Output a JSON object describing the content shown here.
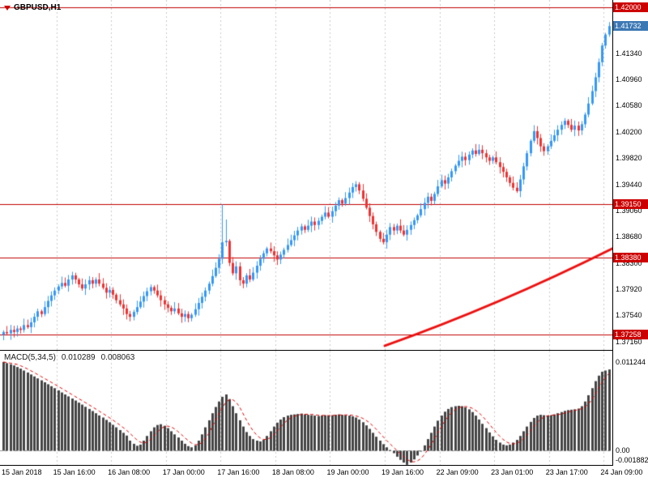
{
  "chart_header": {
    "symbol_label": "GBPUSD,H1"
  },
  "indicator": {
    "name": "MACD(5,34,5)",
    "value_main": "0.010289",
    "value_signal": "0.008063"
  },
  "colors": {
    "bull": "#3598f5",
    "bear": "#ee3333",
    "hist": "#444444",
    "signal": "#e00000",
    "level": "#c00000",
    "trend": "#ee1111",
    "grid": "#c9c9c9",
    "zero_line": "#999999",
    "tag_red": "#cc0000",
    "tag_blue": "#3c78b4"
  },
  "chart_data": [
    {
      "type": "candlestick",
      "title": "GBPUSD,H1",
      "symbol": "GBPUSD",
      "timeframe": "H1",
      "slots": 179,
      "x_labels": [
        {
          "text": "15 Jan 2018",
          "bar": 0
        },
        {
          "text": "15 Jan 16:00",
          "bar": 16
        },
        {
          "text": "16 Jan 08:00",
          "bar": 32
        },
        {
          "text": "17 Jan 00:00",
          "bar": 48
        },
        {
          "text": "17 Jan 16:00",
          "bar": 64
        },
        {
          "text": "18 Jan 08:00",
          "bar": 80
        },
        {
          "text": "19 Jan 00:00",
          "bar": 96
        },
        {
          "text": "19 Jan 16:00",
          "bar": 112
        },
        {
          "text": "22 Jan 09:00",
          "bar": 128
        },
        {
          "text": "23 Jan 01:00",
          "bar": 144
        },
        {
          "text": "23 Jan 17:00",
          "bar": 160
        },
        {
          "text": "24 Jan 09:00",
          "bar": 176
        }
      ],
      "closes": [
        1.373,
        1.3728,
        1.3733,
        1.373,
        1.3735,
        1.3733,
        1.374,
        1.3737,
        1.3744,
        1.3752,
        1.376,
        1.3756,
        1.3766,
        1.3775,
        1.3783,
        1.379,
        1.3796,
        1.3801,
        1.3797,
        1.3806,
        1.3812,
        1.3806,
        1.3799,
        1.3793,
        1.3799,
        1.3805,
        1.38,
        1.3806,
        1.38,
        1.3794,
        1.3787,
        1.3791,
        1.3784,
        1.3776,
        1.377,
        1.3764,
        1.3756,
        1.3752,
        1.3759,
        1.3766,
        1.3774,
        1.3782,
        1.3789,
        1.3795,
        1.379,
        1.3783,
        1.3776,
        1.377,
        1.3765,
        1.376,
        1.3764,
        1.3757,
        1.3752,
        1.3756,
        1.375,
        1.3755,
        1.3763,
        1.3772,
        1.3781,
        1.379,
        1.38,
        1.3811,
        1.3823,
        1.3836,
        1.386,
        1.3862,
        1.383,
        1.3815,
        1.3825,
        1.3805,
        1.38,
        1.3812,
        1.3806,
        1.3816,
        1.3826,
        1.3836,
        1.3844,
        1.3851,
        1.3847,
        1.3841,
        1.3835,
        1.3842,
        1.3849,
        1.3856,
        1.3863,
        1.387,
        1.3877,
        1.3883,
        1.3878,
        1.3884,
        1.389,
        1.3885,
        1.3891,
        1.3897,
        1.3903,
        1.3897,
        1.3905,
        1.3913,
        1.3921,
        1.3916,
        1.3924,
        1.3932,
        1.394,
        1.3944,
        1.3935,
        1.3923,
        1.391,
        1.3898,
        1.3886,
        1.3875,
        1.3865,
        1.386,
        1.3871,
        1.3882,
        1.3877,
        1.3884,
        1.3877,
        1.3871,
        1.3878,
        1.3885,
        1.3892,
        1.3899,
        1.3908,
        1.3917,
        1.3926,
        1.392,
        1.393,
        1.3941,
        1.395,
        1.3945,
        1.3954,
        1.3963,
        1.3971,
        1.3978,
        1.3984,
        1.3979,
        1.3987,
        1.3993,
        1.3988,
        1.3994,
        1.3989,
        1.3983,
        1.3978,
        1.3983,
        1.3976,
        1.3969,
        1.3962,
        1.3954,
        1.3946,
        1.3939,
        1.3934,
        1.3951,
        1.397,
        1.3989,
        1.4007,
        1.4021,
        1.4011,
        1.3999,
        1.3992,
        1.3999,
        1.4007,
        1.4015,
        1.4023,
        1.403,
        1.4036,
        1.403,
        1.4023,
        1.4029,
        1.4022,
        1.4031,
        1.4045,
        1.4061,
        1.4079,
        1.4099,
        1.4121,
        1.4145,
        1.4161,
        1.41732
      ],
      "candle_overrides": {
        "0": {
          "low": 1.3718
        },
        "64": {
          "high": 1.3915
        },
        "65": {
          "high": 1.3893
        },
        "177": {
          "high": 1.4179
        }
      },
      "y_axis": {
        "min": 1.3704,
        "max": 1.4211,
        "ticks": [
          "1.41340",
          "1.40960",
          "1.40580",
          "1.40200",
          "1.39820",
          "1.39440",
          "1.39060",
          "1.38680",
          "1.38300",
          "1.37920",
          "1.37540",
          "1.37160"
        ]
      },
      "levels": [
        {
          "price": 1.42,
          "label": "1.42000"
        },
        {
          "price": 1.3915,
          "label": "1.39150"
        },
        {
          "price": 1.3838,
          "label": "1.38380"
        },
        {
          "price": 1.37258,
          "label": "1.37258"
        }
      ],
      "current_price": {
        "price": 1.41732,
        "label": "1.41732"
      },
      "trendline": {
        "from_bar": 112,
        "from_price": 1.371,
        "to_bar": 179,
        "to_price": 1.3852,
        "sag": 0.0012
      }
    },
    {
      "type": "bar",
      "title": "MACD(5,34,5)",
      "signal_period": 5,
      "values": [
        0.01124,
        0.0111,
        0.01095,
        0.0108,
        0.0106,
        0.0104,
        0.01015,
        0.0099,
        0.00965,
        0.0094,
        0.00915,
        0.0089,
        0.00865,
        0.0084,
        0.00815,
        0.0079,
        0.00762,
        0.00735,
        0.0071,
        0.00685,
        0.00658,
        0.00632,
        0.00605,
        0.0058,
        0.00552,
        0.00525,
        0.00498,
        0.0047,
        0.00442,
        0.00415,
        0.00385,
        0.00355,
        0.00322,
        0.0029,
        0.00255,
        0.0022,
        0.00185,
        0.0012,
        0.0008,
        0.00055,
        0.0007,
        0.0012,
        0.0018,
        0.0024,
        0.0029,
        0.0032,
        0.0033,
        0.0031,
        0.0028,
        0.0024,
        0.002,
        0.0016,
        0.0012,
        0.0008,
        0.0005,
        0.00035,
        0.0006,
        0.0012,
        0.002,
        0.0029,
        0.0038,
        0.0047,
        0.0055,
        0.0062,
        0.0068,
        0.0071,
        0.0065,
        0.0056,
        0.0047,
        0.0038,
        0.003,
        0.0023,
        0.0018,
        0.0014,
        0.0012,
        0.0011,
        0.0013,
        0.0018,
        0.0024,
        0.003,
        0.0035,
        0.0039,
        0.0042,
        0.0044,
        0.0045,
        0.00455,
        0.0046,
        0.00465,
        0.00455,
        0.0045,
        0.00445,
        0.0044,
        0.00435,
        0.0044,
        0.00445,
        0.0044,
        0.00445,
        0.0045,
        0.00455,
        0.0045,
        0.00445,
        0.0044,
        0.0043,
        0.00415,
        0.0039,
        0.00355,
        0.00315,
        0.0027,
        0.0022,
        0.0017,
        0.0012,
        0.00075,
        0.00035,
        0.0,
        -0.0004,
        -0.00085,
        -0.00125,
        -0.0016,
        -0.00188,
        -0.0016,
        -0.0012,
        -0.0007,
        -0.00015,
        0.0006,
        0.0014,
        0.0022,
        0.003,
        0.00375,
        0.0044,
        0.0049,
        0.00525,
        0.00548,
        0.0056,
        0.00565,
        0.0056,
        0.00545,
        0.0052,
        0.00485,
        0.0044,
        0.0039,
        0.00335,
        0.0028,
        0.00225,
        0.00175,
        0.0013,
        0.00095,
        0.0007,
        0.0006,
        0.0007,
        0.00095,
        0.0013,
        0.0018,
        0.0024,
        0.003,
        0.0036,
        0.0041,
        0.0044,
        0.0045,
        0.00445,
        0.0044,
        0.00445,
        0.00455,
        0.0047,
        0.00485,
        0.005,
        0.0051,
        0.00515,
        0.0052,
        0.0053,
        0.0056,
        0.0062,
        0.007,
        0.0079,
        0.0088,
        0.0095,
        0.01,
        0.01015,
        0.01029
      ],
      "y_axis": {
        "min": -0.0019,
        "max": 0.01268,
        "labels": [
          {
            "value": 0.011244,
            "text": "0.011244"
          },
          {
            "value": 0.0,
            "text": "0.00"
          },
          {
            "value": -0.001882,
            "text": "-0.001882"
          }
        ]
      }
    }
  ]
}
